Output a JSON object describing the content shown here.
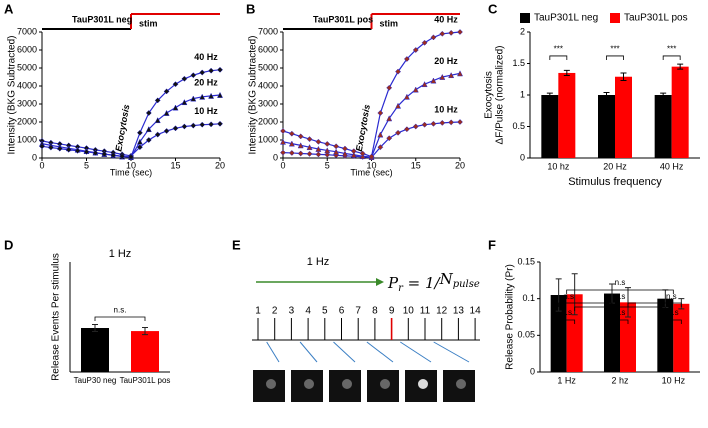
{
  "chart_data": [
    {
      "panel": "A",
      "type": "line",
      "header": "TauP301L neg",
      "stim_label": "stim",
      "annotation": "Exocytosis",
      "xlabel": "Time (sec)",
      "ylabel": "Intensity (BKG Subtracted)",
      "line_color": "#2b2bd0",
      "x": [
        0,
        1,
        2,
        3,
        4,
        5,
        6,
        7,
        8,
        9,
        10,
        11,
        12,
        13,
        14,
        15,
        16,
        17,
        18,
        19,
        20
      ],
      "xlim": [
        0,
        20
      ],
      "xticks": [
        0,
        5,
        10,
        15,
        20
      ],
      "ylim": [
        0,
        7000
      ],
      "yticks": [
        0,
        1000,
        2000,
        3000,
        4000,
        5000,
        6000,
        7000
      ],
      "series": [
        {
          "name": "10 Hz",
          "color": "#111111",
          "marker": "diamond",
          "values": [
            950,
            850,
            780,
            700,
            620,
            550,
            450,
            380,
            300,
            200,
            120,
            600,
            1000,
            1300,
            1500,
            1650,
            1750,
            1800,
            1850,
            1870,
            1900
          ]
        },
        {
          "name": "20 Hz",
          "color": "#111111",
          "marker": "triangle",
          "values": [
            800,
            700,
            620,
            540,
            460,
            380,
            300,
            220,
            150,
            80,
            50,
            900,
            1600,
            2100,
            2500,
            2800,
            3100,
            3300,
            3400,
            3450,
            3500
          ]
        },
        {
          "name": "40 Hz",
          "color": "#111111",
          "marker": "diamond",
          "values": [
            650,
            580,
            520,
            460,
            400,
            340,
            280,
            220,
            160,
            100,
            60,
            1400,
            2500,
            3200,
            3700,
            4100,
            4400,
            4600,
            4750,
            4850,
            4900
          ]
        }
      ]
    },
    {
      "panel": "B",
      "type": "line",
      "header": "TauP301L pos",
      "stim_label": "stim",
      "annotation": "Exocytosis",
      "xlabel": "Time (sec)",
      "ylabel": "Intensity (BKG Subtracted)",
      "line_color": "#2b2bd0",
      "x": [
        0,
        1,
        2,
        3,
        4,
        5,
        6,
        7,
        8,
        9,
        10,
        11,
        12,
        13,
        14,
        15,
        16,
        17,
        18,
        19,
        20
      ],
      "xlim": [
        0,
        20
      ],
      "xticks": [
        0,
        5,
        10,
        15,
        20
      ],
      "ylim": [
        0,
        7000
      ],
      "yticks": [
        0,
        1000,
        2000,
        3000,
        4000,
        5000,
        6000,
        7000
      ],
      "series": [
        {
          "name": "10 Hz",
          "color": "#9b2d20",
          "marker": "diamond",
          "values": [
            300,
            280,
            250,
            230,
            200,
            180,
            150,
            120,
            100,
            60,
            30,
            600,
            1100,
            1400,
            1600,
            1750,
            1850,
            1900,
            1950,
            1980,
            2000
          ]
        },
        {
          "name": "20 Hz",
          "color": "#9b2d20",
          "marker": "triangle",
          "values": [
            900,
            800,
            700,
            600,
            500,
            420,
            350,
            250,
            180,
            100,
            50,
            1300,
            2200,
            2900,
            3400,
            3800,
            4100,
            4300,
            4500,
            4600,
            4700
          ]
        },
        {
          "name": "40 Hz",
          "color": "#9b2d20",
          "marker": "diamond",
          "values": [
            1500,
            1350,
            1200,
            1050,
            900,
            780,
            650,
            520,
            380,
            250,
            80,
            2500,
            3900,
            4800,
            5500,
            6000,
            6400,
            6700,
            6900,
            6950,
            7000
          ]
        }
      ]
    },
    {
      "panel": "C",
      "type": "bar",
      "categories": [
        "10 hz",
        "20 Hz",
        "40 Hz"
      ],
      "ylabel": [
        "Exocytosis",
        "ΔF/Pulse (normalized)"
      ],
      "xlabel": "Stimulus frequency",
      "ylim": [
        0,
        2
      ],
      "yticks": [
        0,
        0.5,
        1,
        1.5,
        2
      ],
      "legend": "top",
      "annotations": [
        "***",
        "***",
        "***"
      ],
      "series": [
        {
          "name": "TauP301L neg",
          "color": "#000000",
          "values": [
            1,
            1,
            1
          ],
          "errors": [
            0.03,
            0.04,
            0.03
          ]
        },
        {
          "name": "TauP301L pos",
          "color": "#ff0000",
          "values": [
            1.35,
            1.29,
            1.45
          ],
          "errors": [
            0.04,
            0.06,
            0.04
          ]
        }
      ]
    },
    {
      "panel": "D",
      "type": "bar",
      "title": "1 Hz",
      "categories": [
        "TauP30 neg",
        "TauP301L pos"
      ],
      "ylabel": [
        "Release Events Per stimulus"
      ],
      "ylim": [
        0,
        0.25
      ],
      "annotations": [
        "n.s."
      ],
      "series": [
        {
          "colors": [
            "#000000",
            "#ff0000"
          ],
          "values": [
            0.1,
            0.093
          ],
          "errors": [
            0.008,
            0.008
          ]
        }
      ]
    },
    {
      "panel": "F",
      "type": "bar",
      "categories": [
        "1 Hz",
        "2 hz",
        "10 Hz"
      ],
      "ylabel": [
        "Release Probability (Pr)"
      ],
      "ylim": [
        0,
        0.15
      ],
      "yticks": [
        0,
        0.05,
        0.1,
        0.15
      ],
      "annotations": [
        "n.s",
        "n.s",
        "n.s",
        "n.s",
        "n.s",
        "n.s",
        "n.s"
      ],
      "series": [
        {
          "color": "#000000",
          "values": [
            0.105,
            0.107,
            0.1
          ],
          "errors": [
            0.022,
            0.013,
            0.012
          ]
        },
        {
          "color": "#ff0000",
          "values": [
            0.106,
            0.095,
            0.093
          ],
          "errors": [
            0.028,
            0.02,
            0.007
          ]
        }
      ]
    }
  ],
  "diagram": {
    "panel": "E",
    "title": "1 Hz",
    "formula": [
      "P",
      "r",
      " = ",
      "1",
      "/",
      "N",
      "pulse"
    ],
    "pulses": [
      "1",
      "2",
      "3",
      "4",
      "5",
      "6",
      "7",
      "8",
      "9",
      "10",
      "11",
      "12",
      "13",
      "14"
    ]
  }
}
